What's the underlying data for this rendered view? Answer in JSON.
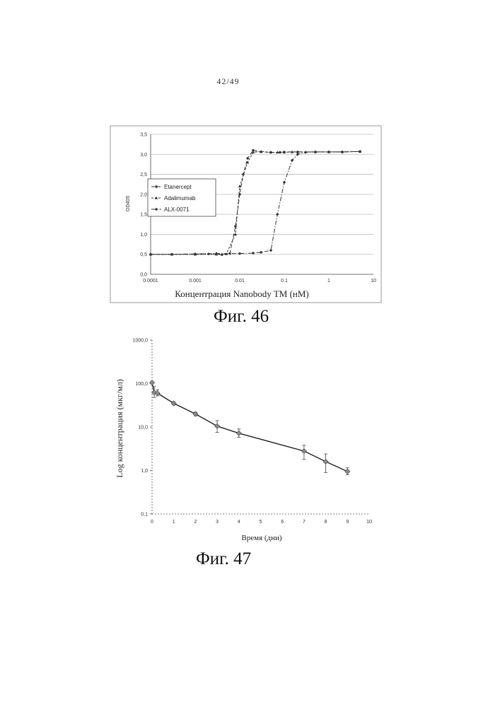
{
  "page_number": "42/49",
  "figures": {
    "fig46": {
      "caption": "Фиг. 46"
    },
    "fig47": {
      "caption": "Фиг. 47"
    }
  },
  "chart_data": [
    {
      "type": "line",
      "xscale": "log",
      "xlabel": "Концентрация Nanobody TM (нМ)",
      "ylabel": "OD405",
      "xlim": [
        0.0001,
        10
      ],
      "ylim": [
        0,
        3.5
      ],
      "x_ticks": [
        0.0001,
        0.001,
        0.01,
        0.1,
        1,
        10
      ],
      "x_tick_labels": [
        "0.0001",
        "0.001",
        "0.01",
        "0.1",
        "1",
        "10"
      ],
      "y_ticks": [
        0,
        0.5,
        1,
        1.5,
        2,
        2.5,
        3,
        3.5
      ],
      "y_tick_labels": [
        "0,0",
        "0,5",
        "1,0",
        "1,5",
        "2,0",
        "2,5",
        "3,0",
        "3,5"
      ],
      "grid": true,
      "legend_position": "left",
      "series": [
        {
          "name": "Etanercept",
          "x": [
            0.0001,
            0.0003,
            0.001,
            0.002,
            0.004,
            0.006,
            0.008,
            0.01,
            0.012,
            0.015,
            0.02,
            0.03,
            0.05,
            0.08,
            0.1,
            0.2,
            0.5,
            1,
            2,
            5
          ],
          "y": [
            0.5,
            0.5,
            0.5,
            0.51,
            0.49,
            0.52,
            1.2,
            2.0,
            2.5,
            2.9,
            3.1,
            3.06,
            3.05,
            3.05,
            3.06,
            3.06,
            3.06,
            3.06,
            3.06,
            3.07
          ]
        },
        {
          "name": "Adalimumab",
          "x": [
            0.0001,
            0.0003,
            0.001,
            0.003,
            0.005,
            0.008,
            0.01,
            0.015,
            0.02,
            0.03,
            0.05,
            0.07,
            0.1,
            0.15,
            0.2,
            0.5,
            1,
            2,
            5
          ],
          "y": [
            0.5,
            0.5,
            0.5,
            0.5,
            0.51,
            1.0,
            2.2,
            2.8,
            3.05,
            3.07,
            3.05,
            3.05,
            3.05,
            3.06,
            3.06,
            3.06,
            3.06,
            3.06,
            3.07
          ]
        },
        {
          "name": "ALX-0071",
          "x": [
            0.0001,
            0.0003,
            0.001,
            0.003,
            0.01,
            0.02,
            0.03,
            0.05,
            0.07,
            0.1,
            0.15,
            0.2,
            0.3,
            0.5,
            1,
            2,
            5
          ],
          "y": [
            0.5,
            0.5,
            0.51,
            0.52,
            0.52,
            0.53,
            0.55,
            0.6,
            1.5,
            2.3,
            2.85,
            3.0,
            3.05,
            3.06,
            3.06,
            3.06,
            3.07
          ]
        }
      ]
    },
    {
      "type": "line",
      "yscale": "log",
      "xlabel": "Время (дни)",
      "ylabel": "Log концентрация (мкг/мл)",
      "xlim": [
        0,
        10
      ],
      "ylim": [
        0.1,
        1000
      ],
      "x_ticks": [
        0,
        1,
        2,
        3,
        4,
        5,
        6,
        7,
        8,
        9,
        10
      ],
      "x_tick_labels": [
        "0",
        "1",
        "2",
        "3",
        "4",
        "5",
        "6",
        "7",
        "8",
        "9",
        "10"
      ],
      "y_ticks": [
        0.1,
        1,
        10,
        100,
        1000
      ],
      "y_tick_labels": [
        "0,1",
        "1,0",
        "10,0",
        "100,0",
        "1000,0"
      ],
      "grid": false,
      "series": [
        {
          "x": [
            0,
            0.1,
            0.25,
            1,
            2,
            3,
            4,
            7,
            8,
            9
          ],
          "y": [
            105,
            62,
            60,
            35,
            20,
            10.5,
            7.2,
            2.8,
            1.6,
            0.95
          ],
          "error_high": [
            105,
            85,
            72,
            38,
            22,
            14,
            9,
            3.8,
            2.4,
            1.15
          ],
          "error_low": [
            105,
            48,
            52,
            32,
            18,
            7.5,
            5.8,
            1.8,
            0.9,
            0.8
          ]
        }
      ]
    }
  ]
}
